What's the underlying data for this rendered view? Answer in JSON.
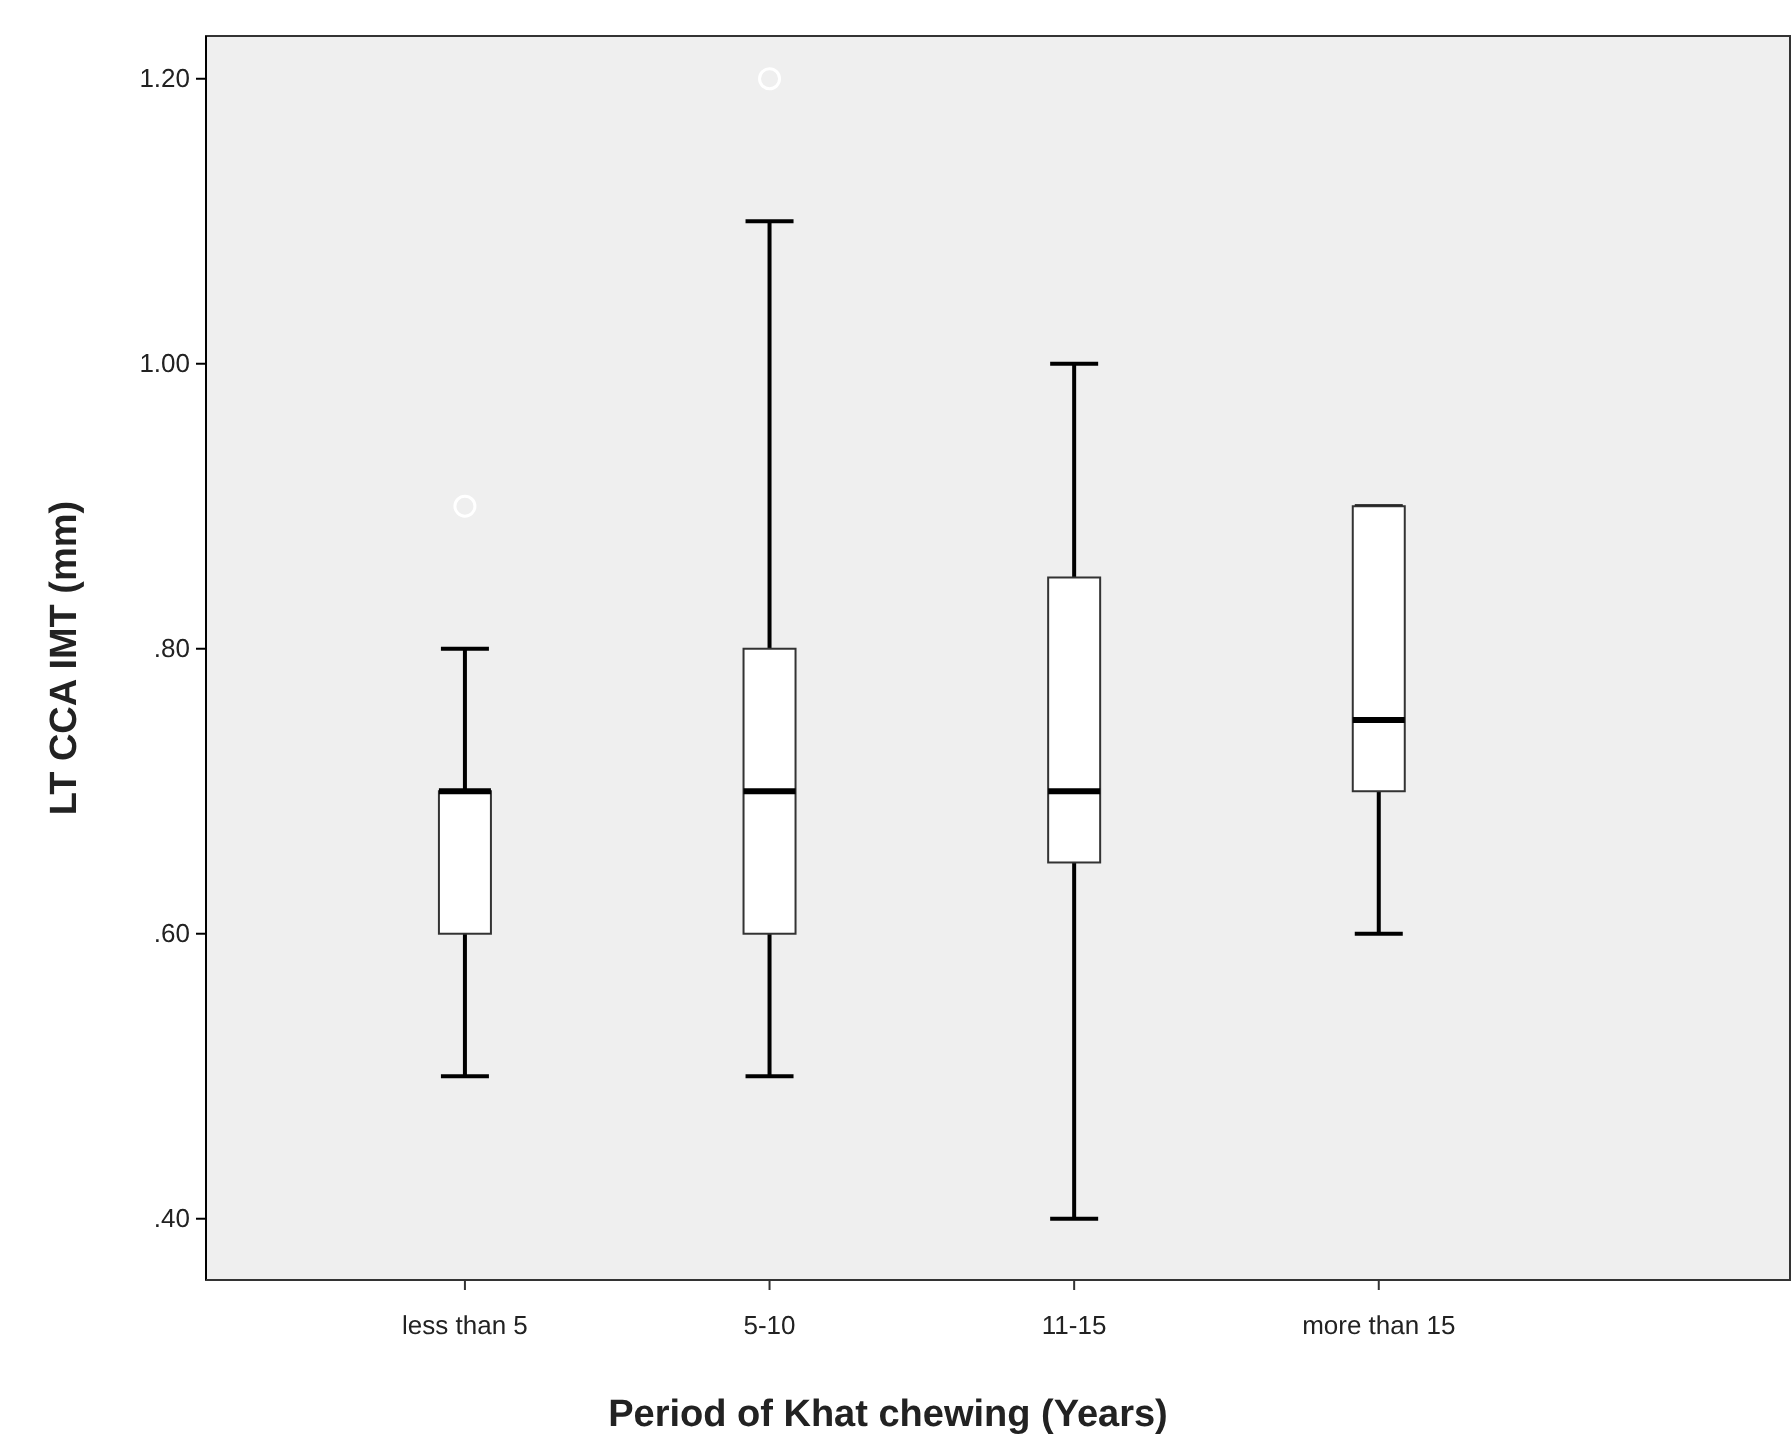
{
  "chart_data": {
    "type": "box",
    "xlabel": "Period of Khat chewing (Years)",
    "ylabel": "LT CCA IMT (mm)",
    "categories": [
      "less than 5",
      "5-10",
      "11-15",
      "more than 15"
    ],
    "boxes": [
      {
        "low": 0.5,
        "q1": 0.6,
        "median": 0.7,
        "q3": 0.7,
        "high": 0.8,
        "outliers": [
          0.9
        ]
      },
      {
        "low": 0.5,
        "q1": 0.6,
        "median": 0.7,
        "q3": 0.8,
        "high": 1.1,
        "outliers": [
          1.2
        ]
      },
      {
        "low": 0.4,
        "q1": 0.65,
        "median": 0.7,
        "q3": 0.85,
        "high": 1.0
      },
      {
        "low": 0.6,
        "q1": 0.7,
        "median": 0.75,
        "q3": 0.9,
        "high": 0.9
      }
    ],
    "ylim": [
      0.357,
      1.23
    ],
    "yticks": [
      {
        "value": 0.4,
        "label": ".40"
      },
      {
        "value": 0.6,
        "label": ".60"
      },
      {
        "value": 0.8,
        "label": ".80"
      },
      {
        "value": 1.0,
        "label": "1.00"
      },
      {
        "value": 1.2,
        "label": "1.20"
      }
    ],
    "grid": false
  }
}
